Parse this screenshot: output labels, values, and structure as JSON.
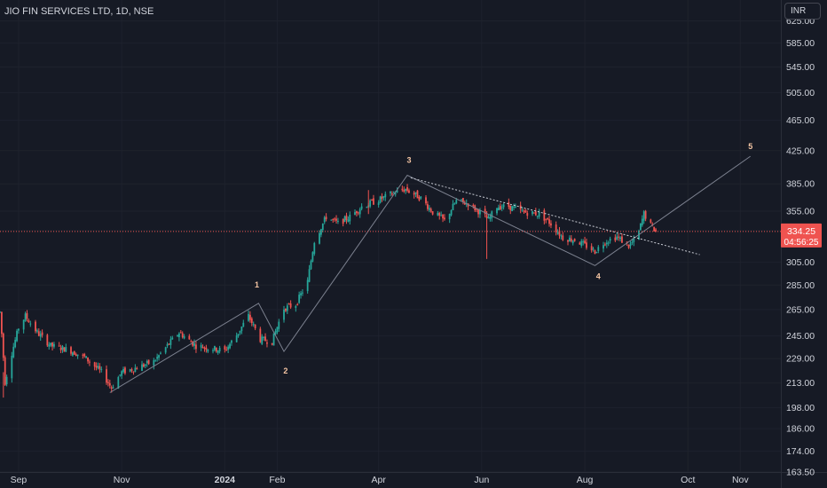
{
  "header": {
    "symbol_title": "JIO FIN SERVICES LTD, 1D, NSE",
    "currency_button": "INR"
  },
  "price_label": {
    "price": "334.25",
    "countdown": "04:56:25"
  },
  "colors": {
    "background": "#161a25",
    "up_candle": "#26a69a",
    "down_candle": "#ef5350",
    "text": "#d1d4dc",
    "current_price_line": "#ef5350",
    "wave_line": "#7d8290",
    "wave_label": "#f6c6a4",
    "trend_line": "#c8cbd3"
  },
  "chart_data": {
    "type": "candlestick",
    "symbol": "JIO FIN SERVICES LTD",
    "interval": "1D",
    "exchange": "NSE",
    "ylim": [
      163.5,
      665
    ],
    "y_scale": "log",
    "y_ticks": [
      "625.00",
      "585.00",
      "545.00",
      "505.00",
      "465.00",
      "425.00",
      "385.00",
      "355.00",
      "335.00",
      "305.00",
      "285.00",
      "265.00",
      "245.00",
      "229.00",
      "213.00",
      "198.00",
      "186.00",
      "174.00",
      "163.50"
    ],
    "x_range": [
      "2023-08-21",
      "2024-11-25"
    ],
    "x_ticks": [
      {
        "date": "2023-09-01",
        "label": "Sep",
        "bold": false
      },
      {
        "date": "2023-11-01",
        "label": "Nov",
        "bold": false
      },
      {
        "date": "2024-01-01",
        "label": "2024",
        "bold": true
      },
      {
        "date": "2024-02-01",
        "label": "Feb",
        "bold": false
      },
      {
        "date": "2024-04-01",
        "label": "Apr",
        "bold": false
      },
      {
        "date": "2024-06-01",
        "label": "Jun",
        "bold": false
      },
      {
        "date": "2024-08-01",
        "label": "Aug",
        "bold": false
      },
      {
        "date": "2024-10-01",
        "label": "Oct",
        "bold": false
      },
      {
        "date": "2024-11-01",
        "label": "Nov",
        "bold": false
      }
    ],
    "current_price": 334.25,
    "path_points": [
      [
        "2023-08-21",
        265,
        261
      ],
      [
        "2023-08-24",
        218,
        209
      ],
      [
        "2023-08-28",
        238,
        228
      ],
      [
        "2023-09-01",
        254,
        248
      ],
      [
        "2023-09-05",
        262,
        258
      ],
      [
        "2023-09-12",
        250,
        245
      ],
      [
        "2023-09-20",
        240,
        236
      ],
      [
        "2023-10-01",
        237,
        233
      ],
      [
        "2023-10-10",
        232,
        228
      ],
      [
        "2023-10-20",
        222,
        218
      ],
      [
        "2023-10-26",
        212,
        208
      ],
      [
        "2023-11-01",
        222,
        218
      ],
      [
        "2023-11-10",
        225,
        221
      ],
      [
        "2023-11-20",
        229,
        225
      ],
      [
        "2023-11-28",
        240,
        236
      ],
      [
        "2023-12-05",
        249,
        246
      ],
      [
        "2023-12-15",
        240,
        236
      ],
      [
        "2024-01-01",
        236,
        233
      ],
      [
        "2024-01-08",
        247,
        244
      ],
      [
        "2024-01-15",
        262,
        258
      ],
      [
        "2024-01-22",
        245,
        240
      ],
      [
        "2024-01-29",
        244,
        238
      ],
      [
        "2024-02-05",
        270,
        262
      ],
      [
        "2024-02-12",
        272,
        266
      ],
      [
        "2024-02-19",
        292,
        284
      ],
      [
        "2024-02-23",
        330,
        320
      ],
      [
        "2024-03-01",
        352,
        346
      ],
      [
        "2024-03-08",
        345,
        340
      ],
      [
        "2024-03-15",
        352,
        346
      ],
      [
        "2024-03-22",
        362,
        358
      ],
      [
        "2024-04-01",
        369,
        365
      ],
      [
        "2024-04-10",
        378,
        372
      ],
      [
        "2024-04-17",
        382,
        376
      ],
      [
        "2024-04-26",
        372,
        366
      ],
      [
        "2024-05-03",
        356,
        352
      ],
      [
        "2024-05-10",
        348,
        342
      ],
      [
        "2024-05-17",
        368,
        364
      ],
      [
        "2024-05-24",
        366,
        360
      ],
      [
        "2024-06-01",
        355,
        350
      ],
      [
        "2024-06-05",
        348,
        344
      ],
      [
        "2024-06-10",
        362,
        358
      ],
      [
        "2024-06-17",
        362,
        358
      ],
      [
        "2024-06-26",
        356,
        352
      ],
      [
        "2024-07-05",
        354,
        350
      ],
      [
        "2024-07-12",
        344,
        340
      ],
      [
        "2024-07-19",
        330,
        326
      ],
      [
        "2024-07-26",
        328,
        324
      ],
      [
        "2024-08-02",
        322,
        318
      ],
      [
        "2024-08-07",
        318,
        312
      ],
      [
        "2024-08-13",
        327,
        322
      ],
      [
        "2024-08-20",
        331,
        327
      ],
      [
        "2024-08-27",
        322,
        318
      ],
      [
        "2024-09-01",
        330,
        326
      ],
      [
        "2024-09-05",
        355,
        350
      ],
      [
        "2024-09-09",
        343,
        338
      ],
      [
        "2024-09-12",
        334.25,
        334.25
      ]
    ],
    "spikes": [
      {
        "date": "2024-06-04",
        "low": 308,
        "high": 355
      },
      {
        "date": "2023-08-23",
        "low": 204,
        "high": 220
      },
      {
        "date": "2024-03-26",
        "low": 352,
        "high": 378
      }
    ],
    "wave_path": [
      {
        "date": "2023-10-25",
        "price": 207
      },
      {
        "date": "2024-01-21",
        "price": 270
      },
      {
        "date": "2024-02-05",
        "price": 234
      },
      {
        "date": "2024-04-18",
        "price": 395
      },
      {
        "date": "2024-08-07",
        "price": 302
      },
      {
        "date": "2024-11-07",
        "price": 418
      }
    ],
    "wave_labels": [
      {
        "label": "1",
        "date": "2024-01-20",
        "price": 283
      },
      {
        "label": "2",
        "date": "2024-02-06",
        "price": 219
      },
      {
        "label": "3",
        "date": "2024-04-19",
        "price": 410
      },
      {
        "label": "4",
        "date": "2024-08-09",
        "price": 290
      },
      {
        "label": "5",
        "date": "2024-11-07",
        "price": 427
      }
    ],
    "trend_line": {
      "start": {
        "date": "2024-04-20",
        "price": 392
      },
      "end": {
        "date": "2024-10-08",
        "price": 312
      }
    }
  }
}
